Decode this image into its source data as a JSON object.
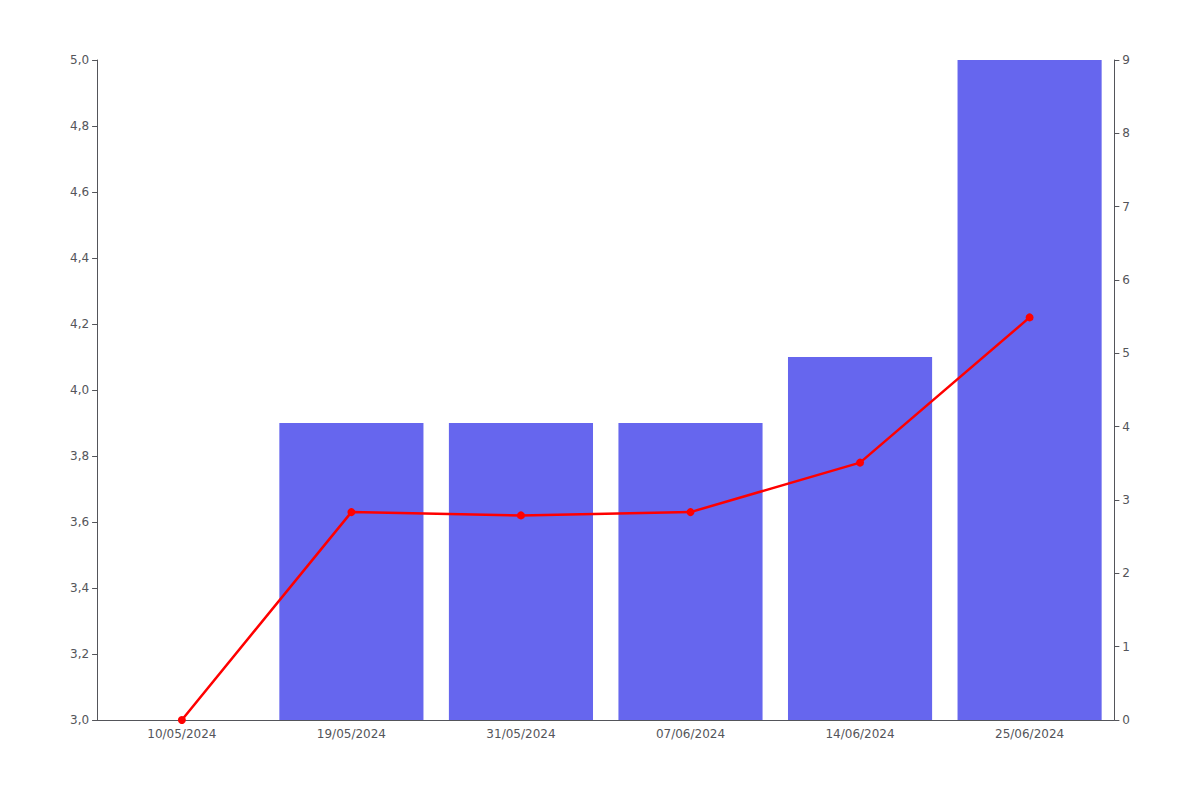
{
  "chart_data": {
    "type": "bar",
    "categories": [
      "10/05/2024",
      "19/05/2024",
      "31/05/2024",
      "07/06/2024",
      "14/06/2024",
      "25/06/2024"
    ],
    "series": [
      {
        "type": "bar",
        "color": "#6666ee",
        "values": [
          null,
          3.9,
          3.9,
          3.9,
          4.1,
          5.0
        ]
      },
      {
        "type": "line",
        "color": "#ff0000",
        "marker": "circle",
        "values": [
          3.0,
          3.63,
          3.62,
          3.63,
          3.78,
          4.22
        ]
      }
    ],
    "ylim": [
      3.0,
      5.0
    ],
    "yticks": [
      {
        "value": 3.0,
        "label": "3,0"
      },
      {
        "value": 3.2,
        "label": "3,2"
      },
      {
        "value": 3.4,
        "label": "3,4"
      },
      {
        "value": 3.6,
        "label": "3,6"
      },
      {
        "value": 3.8,
        "label": "3,8"
      },
      {
        "value": 4.0,
        "label": "4,0"
      },
      {
        "value": 4.2,
        "label": "4,2"
      },
      {
        "value": 4.4,
        "label": "4,4"
      },
      {
        "value": 4.6,
        "label": "4,6"
      },
      {
        "value": 4.8,
        "label": "4,8"
      },
      {
        "value": 5.0,
        "label": "5,0"
      }
    ],
    "y2lim": [
      0,
      9
    ],
    "y2ticks": [
      0,
      1,
      2,
      3,
      4,
      5,
      6,
      7,
      8,
      9
    ],
    "grid": false
  }
}
